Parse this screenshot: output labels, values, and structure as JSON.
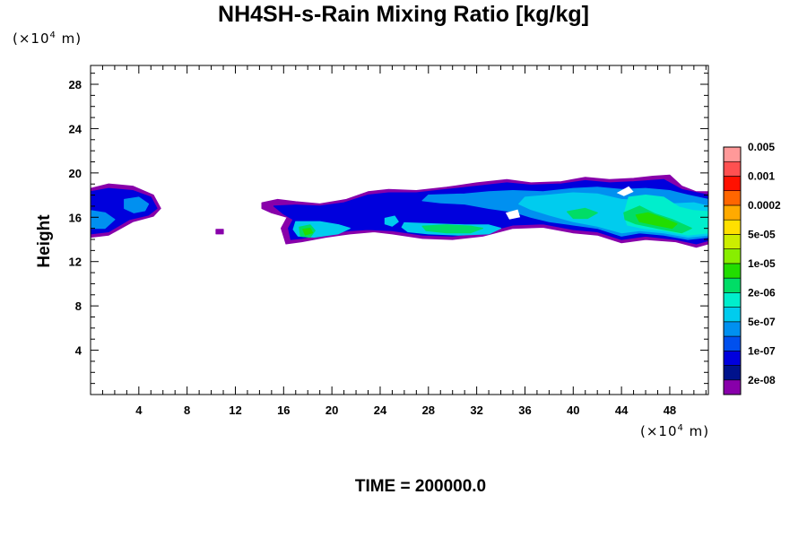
{
  "chart_data": {
    "type": "heatmap",
    "title": "NH4SH-s-Rain Mixing Ratio [kg/kg]",
    "ylabel": "Height",
    "y_unit": "(×10",
    "x_unit": "(×10",
    "unit_exp": "4",
    "unit_tail": " m)",
    "xlim": [
      0,
      51.2
    ],
    "ylim": [
      0,
      29.7
    ],
    "x_ticks": [
      4,
      8,
      12,
      16,
      20,
      24,
      28,
      32,
      36,
      40,
      44,
      48
    ],
    "y_ticks": [
      4,
      8,
      12,
      16,
      20,
      24,
      28
    ],
    "time_label": "TIME = 200000.0",
    "colorbar": {
      "colors": [
        "#8800aa",
        "#00128c",
        "#0000dd",
        "#0050ee",
        "#0090f0",
        "#00ccee",
        "#00eecc",
        "#00dd66",
        "#22dd00",
        "#88ee00",
        "#ccee00",
        "#ffe000",
        "#ffaa00",
        "#ff6600",
        "#ff1100",
        "#ff5050",
        "#ff9999"
      ],
      "labels": [
        "2e-08",
        "1e-07",
        "5e-07",
        "2e-06",
        "1e-05",
        "5e-05",
        "0.0002",
        "0.001",
        "0.005"
      ]
    },
    "fields": [
      {
        "level": 0,
        "points": [
          [
            0,
            18.6
          ],
          [
            1.5,
            19
          ],
          [
            3.5,
            18.8
          ],
          [
            5.2,
            18
          ],
          [
            5.8,
            16.8
          ],
          [
            5.2,
            16.1
          ],
          [
            3.5,
            15.6
          ],
          [
            1.5,
            14.4
          ],
          [
            0,
            14.2
          ]
        ]
      },
      {
        "level": 2,
        "points": [
          [
            0,
            18.3
          ],
          [
            1.5,
            18.6
          ],
          [
            3.5,
            18.4
          ],
          [
            5,
            17.8
          ],
          [
            5.5,
            16.8
          ],
          [
            4.8,
            16.2
          ],
          [
            3.2,
            15.8
          ],
          [
            1.5,
            14.7
          ],
          [
            0,
            14.5
          ]
        ]
      },
      {
        "level": 4,
        "points": [
          [
            0,
            16.6
          ],
          [
            1.2,
            16.4
          ],
          [
            2,
            15.8
          ],
          [
            1.2,
            15
          ],
          [
            0,
            15
          ]
        ]
      },
      {
        "level": 4,
        "points": [
          [
            2.8,
            17.6
          ],
          [
            4,
            17.8
          ],
          [
            4.8,
            17.2
          ],
          [
            4.5,
            16.6
          ],
          [
            3.6,
            16.4
          ],
          [
            2.8,
            16.8
          ]
        ]
      },
      {
        "level": 0,
        "points": [
          [
            10.4,
            14.9
          ],
          [
            11,
            14.9
          ],
          [
            11,
            14.5
          ],
          [
            10.4,
            14.5
          ]
        ]
      },
      {
        "level": 0,
        "points": [
          [
            14.2,
            17.3
          ],
          [
            15.5,
            17.6
          ],
          [
            17,
            17.4
          ],
          [
            19,
            17.2
          ],
          [
            21.2,
            17.6
          ],
          [
            23,
            18.3
          ],
          [
            24.7,
            18.5
          ],
          [
            27,
            18.4
          ],
          [
            29.5,
            18.7
          ],
          [
            32,
            19.1
          ],
          [
            34.5,
            19.4
          ],
          [
            36.5,
            19.1
          ],
          [
            39,
            19.2
          ],
          [
            41,
            19.6
          ],
          [
            43,
            19.4
          ],
          [
            45,
            19.5
          ],
          [
            46.6,
            19.7
          ],
          [
            48,
            19.8
          ],
          [
            49,
            18.8
          ],
          [
            50.2,
            18.3
          ],
          [
            51.2,
            18.3
          ],
          [
            51.2,
            13.6
          ],
          [
            50.2,
            13.3
          ],
          [
            48.5,
            13.8
          ],
          [
            46,
            14
          ],
          [
            44,
            13.7
          ],
          [
            42,
            14.4
          ],
          [
            40,
            14.6
          ],
          [
            37.5,
            15.1
          ],
          [
            35,
            15
          ],
          [
            32.5,
            14.3
          ],
          [
            30,
            14
          ],
          [
            27.5,
            14.1
          ],
          [
            25,
            14.5
          ],
          [
            23.5,
            14.7
          ],
          [
            21.5,
            14.5
          ],
          [
            19.5,
            14.2
          ],
          [
            17.5,
            13.8
          ],
          [
            16.2,
            13.6
          ],
          [
            15.8,
            15
          ],
          [
            16.3,
            16
          ],
          [
            15,
            16.4
          ],
          [
            14.2,
            16.8
          ]
        ]
      },
      {
        "level": 2,
        "points": [
          [
            15.2,
            17
          ],
          [
            17,
            17.1
          ],
          [
            19,
            17
          ],
          [
            21,
            17.3
          ],
          [
            23,
            18
          ],
          [
            24.7,
            18.2
          ],
          [
            27,
            18.2
          ],
          [
            29.5,
            18.5
          ],
          [
            32,
            18.8
          ],
          [
            34.5,
            19.1
          ],
          [
            36.5,
            18.9
          ],
          [
            39,
            19
          ],
          [
            41,
            19.3
          ],
          [
            43,
            19.1
          ],
          [
            45,
            19.2
          ],
          [
            47.5,
            19.4
          ],
          [
            49,
            18.5
          ],
          [
            51.2,
            18
          ],
          [
            51.2,
            13.9
          ],
          [
            50.2,
            13.6
          ],
          [
            48.5,
            14
          ],
          [
            46,
            14.3
          ],
          [
            44,
            14
          ],
          [
            42,
            14.7
          ],
          [
            40,
            14.9
          ],
          [
            37.5,
            15.4
          ],
          [
            35,
            15.3
          ],
          [
            32.5,
            14.6
          ],
          [
            30,
            14.3
          ],
          [
            27.5,
            14.4
          ],
          [
            25,
            14.8
          ],
          [
            23,
            14.9
          ],
          [
            21.5,
            14.8
          ],
          [
            19.5,
            14.5
          ],
          [
            17.5,
            14.1
          ],
          [
            16.6,
            14
          ],
          [
            16.4,
            15
          ],
          [
            16.8,
            15.8
          ],
          [
            16,
            16.3
          ]
        ]
      },
      {
        "level": 5,
        "points": [
          [
            17,
            15.6
          ],
          [
            19,
            15.6
          ],
          [
            20.6,
            15.3
          ],
          [
            21.5,
            15
          ],
          [
            20.5,
            14.5
          ],
          [
            18.5,
            14.2
          ],
          [
            17.2,
            14.3
          ],
          [
            16.8,
            14.9
          ]
        ]
      },
      {
        "level": 5,
        "points": [
          [
            26,
            15.5
          ],
          [
            28.5,
            15.4
          ],
          [
            31,
            15.3
          ],
          [
            33,
            15.3
          ],
          [
            34,
            15
          ],
          [
            33,
            14.5
          ],
          [
            30.5,
            14.4
          ],
          [
            28,
            14.5
          ],
          [
            26.3,
            14.7
          ],
          [
            25.8,
            15.1
          ]
        ]
      },
      {
        "level": 5,
        "points": [
          [
            24.4,
            15.9
          ],
          [
            25.2,
            16.1
          ],
          [
            25.5,
            15.6
          ],
          [
            25,
            15.2
          ],
          [
            24.4,
            15.4
          ]
        ]
      },
      {
        "level": 4,
        "points": [
          [
            28,
            18
          ],
          [
            31,
            18.1
          ],
          [
            33,
            18.3
          ],
          [
            35,
            18.4
          ],
          [
            37.5,
            18.3
          ],
          [
            40,
            18.6
          ],
          [
            42,
            18.7
          ],
          [
            44,
            18.5
          ],
          [
            46,
            18.6
          ],
          [
            48,
            18.4
          ],
          [
            49.5,
            18
          ],
          [
            51.2,
            17.6
          ],
          [
            51.2,
            14.2
          ],
          [
            49.5,
            14
          ],
          [
            47.5,
            14.4
          ],
          [
            45.5,
            14.6
          ],
          [
            44,
            14.3
          ],
          [
            42,
            15
          ],
          [
            40,
            15.3
          ],
          [
            38,
            15.6
          ],
          [
            36.5,
            16
          ],
          [
            35,
            16.5
          ],
          [
            33,
            16.8
          ],
          [
            31,
            17.2
          ],
          [
            29,
            17.3
          ],
          [
            27.5,
            17.5
          ]
        ]
      },
      {
        "level": 5,
        "points": [
          [
            36,
            17.8
          ],
          [
            38,
            18
          ],
          [
            40,
            18.2
          ],
          [
            42,
            18.1
          ],
          [
            44,
            17.6
          ],
          [
            46,
            17.5
          ],
          [
            48,
            17.2
          ],
          [
            50,
            17.3
          ],
          [
            51.2,
            17
          ],
          [
            51.2,
            14.4
          ],
          [
            49.5,
            14.2
          ],
          [
            47.5,
            14.6
          ],
          [
            45.5,
            14.8
          ],
          [
            44,
            14.6
          ],
          [
            42,
            15.2
          ],
          [
            40,
            15.6
          ],
          [
            38,
            16.2
          ],
          [
            36.5,
            16.7
          ],
          [
            35.5,
            17.2
          ]
        ]
      },
      {
        "level": 6,
        "points": [
          [
            44.6,
            17.8
          ],
          [
            46,
            18
          ],
          [
            47.5,
            17.8
          ],
          [
            48.8,
            16.9
          ],
          [
            50,
            16.6
          ],
          [
            51.2,
            16.5
          ],
          [
            51.2,
            14.6
          ],
          [
            49.5,
            14.4
          ],
          [
            47.5,
            14.8
          ],
          [
            45.8,
            15
          ],
          [
            44.5,
            15.3
          ],
          [
            44.2,
            16.2
          ]
        ]
      },
      {
        "level": 7,
        "points": [
          [
            17.3,
            15.1
          ],
          [
            18.2,
            15.3
          ],
          [
            18.6,
            14.8
          ],
          [
            18.2,
            14.2
          ],
          [
            17.4,
            14.3
          ]
        ]
      },
      {
        "level": 7,
        "points": [
          [
            27.5,
            15.2
          ],
          [
            29.5,
            15.3
          ],
          [
            31.5,
            15.2
          ],
          [
            32.5,
            15
          ],
          [
            31.5,
            14.6
          ],
          [
            29.5,
            14.6
          ],
          [
            27.8,
            14.8
          ]
        ]
      },
      {
        "level": 7,
        "points": [
          [
            39.5,
            16.5
          ],
          [
            41,
            16.8
          ],
          [
            42,
            16.4
          ],
          [
            41.2,
            15.9
          ],
          [
            40,
            15.9
          ]
        ]
      },
      {
        "level": 7,
        "points": [
          [
            44.2,
            16.4
          ],
          [
            45.5,
            17
          ],
          [
            46.8,
            16.3
          ],
          [
            48.2,
            15.8
          ],
          [
            49.8,
            15
          ],
          [
            49,
            14.6
          ],
          [
            47,
            15
          ],
          [
            45.2,
            15.4
          ],
          [
            44.3,
            15.8
          ]
        ]
      },
      {
        "level": 8,
        "points": [
          [
            17.6,
            14.9
          ],
          [
            18.2,
            15
          ],
          [
            18.4,
            14.6
          ],
          [
            17.8,
            14.4
          ]
        ]
      },
      {
        "level": 8,
        "points": [
          [
            45.2,
            16.2
          ],
          [
            46.2,
            16.4
          ],
          [
            47.5,
            15.9
          ],
          [
            48.6,
            15.4
          ],
          [
            48.2,
            15
          ],
          [
            46.8,
            15.3
          ],
          [
            45.5,
            15.6
          ]
        ]
      }
    ],
    "holes": [
      {
        "points": [
          [
            34.4,
            16.4
          ],
          [
            35.4,
            16.7
          ],
          [
            35.6,
            16
          ],
          [
            34.7,
            15.8
          ]
        ]
      },
      {
        "points": [
          [
            43.6,
            18.2
          ],
          [
            44.6,
            18.8
          ],
          [
            45,
            18.3
          ],
          [
            44.2,
            17.9
          ]
        ]
      }
    ]
  }
}
